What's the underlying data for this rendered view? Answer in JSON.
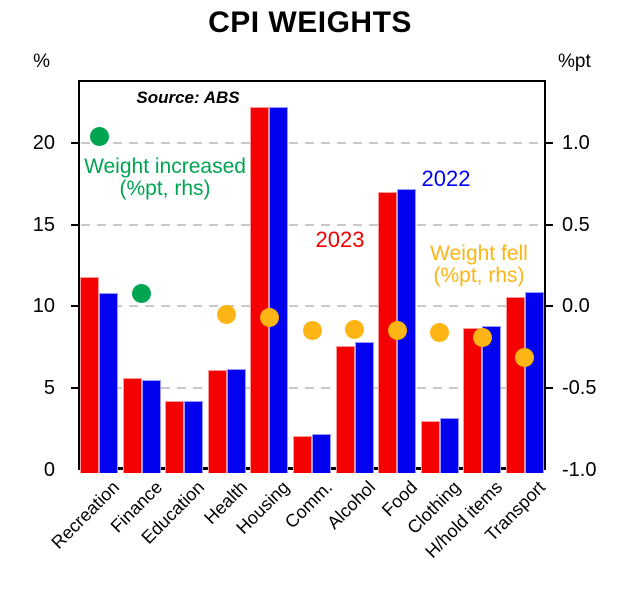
{
  "title": "CPI WEIGHTS",
  "source_note": "Source: ABS",
  "left_axis": {
    "unit": "%",
    "tick_values": [
      0,
      5,
      10,
      15,
      20
    ],
    "tick_labels": [
      "0",
      "5",
      "10",
      "15",
      "20"
    ]
  },
  "right_axis": {
    "unit": "%pt",
    "tick_values": [
      -1.0,
      -0.5,
      0.0,
      0.5,
      1.0
    ],
    "tick_labels": [
      "-1.0",
      "-0.5",
      "0.0",
      "0.5",
      "1.0"
    ]
  },
  "annotations": {
    "series_2023_label": "2023",
    "series_2022_label": "2022",
    "increase_label_line1": "Weight increased",
    "increase_label_line2": "(%pt, rhs)",
    "fell_label_line1": "Weight fell",
    "fell_label_line2": "(%pt, rhs)"
  },
  "colors": {
    "red": "#f50000",
    "red_edge": "#ff9a9a",
    "blue": "#0202f0",
    "blue_edge": "#9a9aff",
    "green": "#00a551",
    "orange": "#fcb515",
    "gridline": "#c9c9c9"
  },
  "chart_data": {
    "type": "bar",
    "title": "CPI WEIGHTS",
    "source": "Source: ABS",
    "categories": [
      "Recreation",
      "Finance",
      "Education",
      "Health",
      "Housing",
      "Comm.",
      "Alcohol",
      "Food",
      "Clothing",
      "H/hold items",
      "Transport"
    ],
    "series": [
      {
        "name": "2023",
        "axis": "left",
        "unit": "%",
        "color_key": "red",
        "values": [
          11.8,
          5.6,
          4.2,
          6.1,
          22.2,
          2.1,
          7.6,
          17.0,
          3.0,
          8.7,
          10.6
        ]
      },
      {
        "name": "2022",
        "axis": "left",
        "unit": "%",
        "color_key": "blue",
        "values": [
          10.8,
          5.5,
          4.2,
          6.2,
          22.2,
          2.2,
          7.8,
          17.2,
          3.2,
          8.8,
          10.9
        ]
      }
    ],
    "dot_series": [
      {
        "name": "Weight increased (%pt, rhs)",
        "axis": "right",
        "unit": "%pt",
        "color_key": "green",
        "points": [
          {
            "category": "Recreation",
            "value": 1.04
          },
          {
            "category": "Finance",
            "value": 0.08
          }
        ]
      },
      {
        "name": "Weight fell (%pt, rhs)",
        "axis": "right",
        "unit": "%pt",
        "color_key": "orange",
        "points": [
          {
            "category": "Health",
            "value": -0.05
          },
          {
            "category": "Housing",
            "value": -0.07
          },
          {
            "category": "Comm.",
            "value": -0.15
          },
          {
            "category": "Alcohol",
            "value": -0.14
          },
          {
            "category": "Food",
            "value": -0.15
          },
          {
            "category": "Clothing",
            "value": -0.16
          },
          {
            "category": "H/hold items",
            "value": -0.19
          },
          {
            "category": "Transport",
            "value": -0.31
          }
        ]
      }
    ],
    "left_ylim": [
      0,
      23.8
    ],
    "right_ylim": [
      -1.0,
      1.38
    ],
    "right_axis_mapping": "rhs_value = (lhs_value - 10) / 10",
    "grid": true,
    "grid_values_left_axis": [
      5,
      10,
      15,
      20
    ],
    "legend_position": "text annotations inside plot area"
  }
}
